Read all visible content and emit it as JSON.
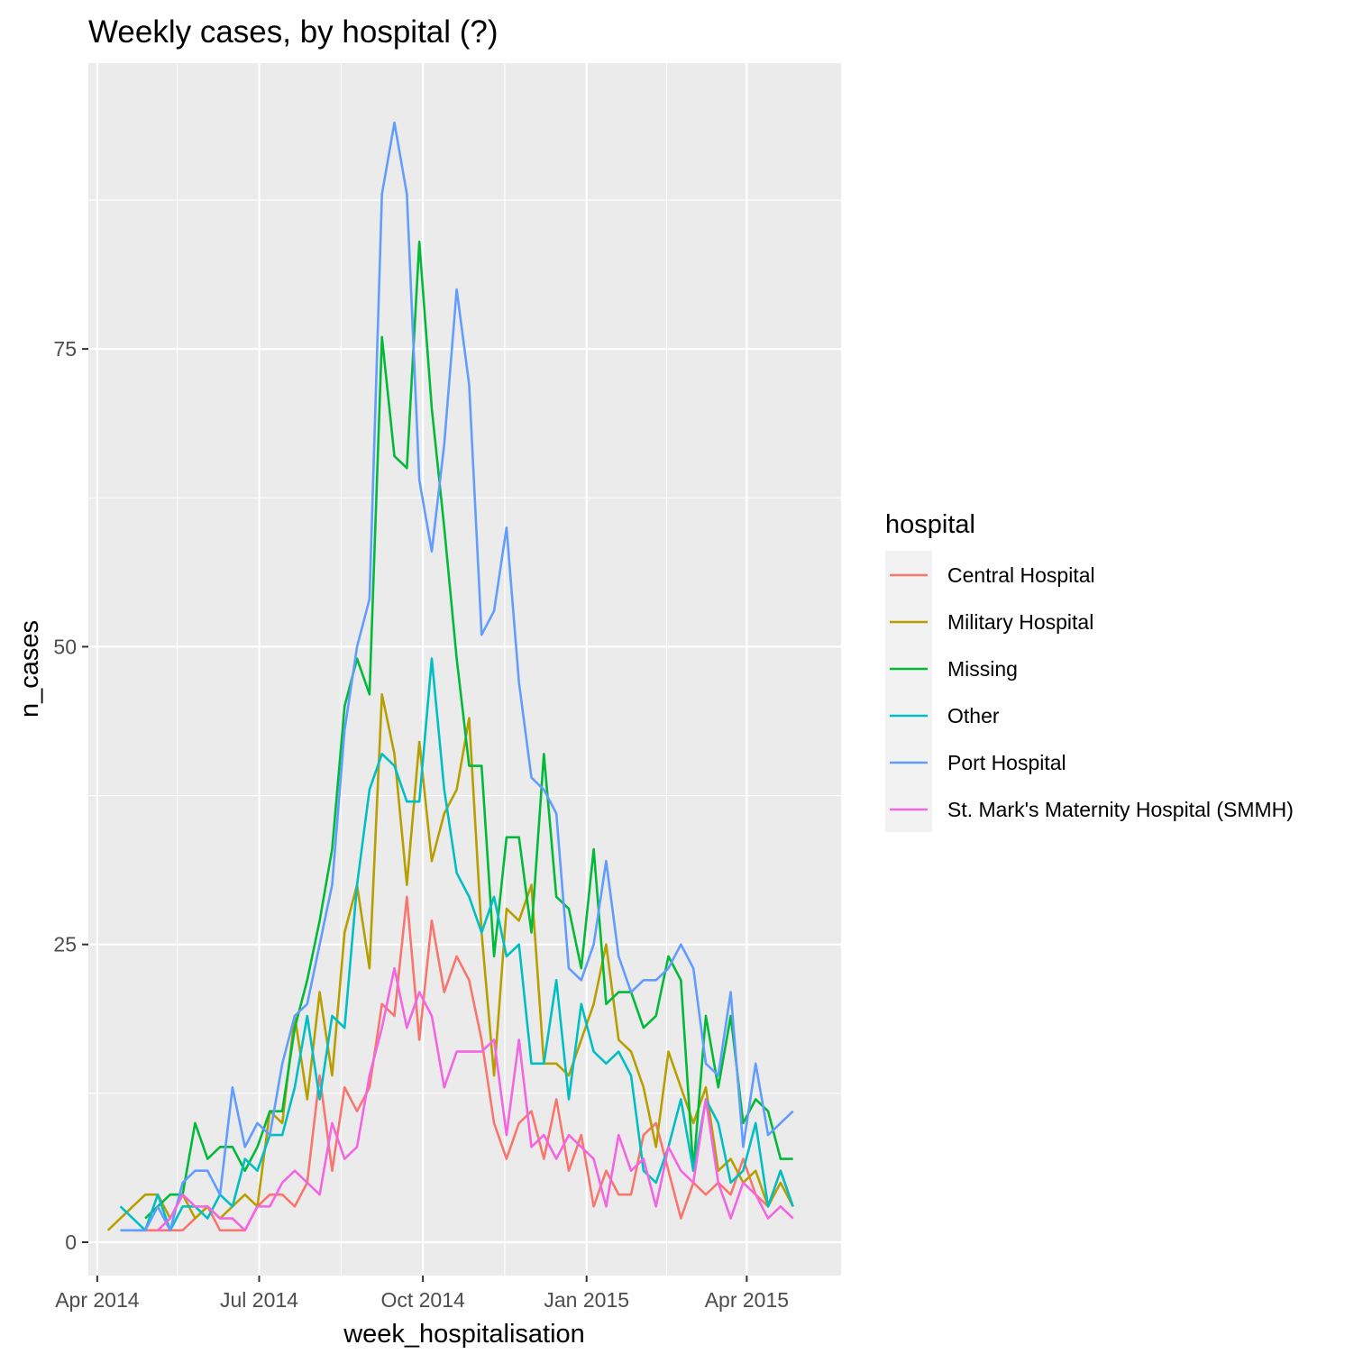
{
  "chart_data": {
    "type": "line",
    "title": "Weekly cases, by hospital (?)",
    "xlabel": "week_hospitalisation",
    "ylabel": "n_cases",
    "x_type": "date",
    "xlim": [
      "2014-03-27",
      "2015-05-24"
    ],
    "ylim": [
      -2.8,
      99
    ],
    "x_ticks": [
      {
        "date": "2014-04-01",
        "label": "Apr 2014"
      },
      {
        "date": "2014-07-01",
        "label": "Jul 2014"
      },
      {
        "date": "2014-10-01",
        "label": "Oct 2014"
      },
      {
        "date": "2015-01-01",
        "label": "Jan 2015"
      },
      {
        "date": "2015-04-01",
        "label": "Apr 2015"
      }
    ],
    "x_minor_ticks": [
      "2014-05-16",
      "2014-08-16",
      "2014-11-16",
      "2015-02-15"
    ],
    "y_ticks": [
      {
        "value": 0,
        "label": "0"
      },
      {
        "value": 25,
        "label": "25"
      },
      {
        "value": 50,
        "label": "50"
      },
      {
        "value": 75,
        "label": "75"
      }
    ],
    "y_minor_ticks": [
      12.5,
      37.5,
      62.5,
      87.5
    ],
    "grid": true,
    "panel_background": "#ebebeb",
    "legend": {
      "title": "hospital",
      "position": "right"
    },
    "series": [
      {
        "name": "Central Hospital",
        "color": "#F8766D",
        "x": [
          "2014-04-21",
          "2014-04-28",
          "2014-05-05",
          "2014-05-12",
          "2014-05-19",
          "2014-05-26",
          "2014-06-02",
          "2014-06-09",
          "2014-06-16",
          "2014-06-23",
          "2014-06-30",
          "2014-07-07",
          "2014-07-14",
          "2014-07-21",
          "2014-07-28",
          "2014-08-04",
          "2014-08-11",
          "2014-08-18",
          "2014-08-25",
          "2014-09-01",
          "2014-09-08",
          "2014-09-15",
          "2014-09-22",
          "2014-09-29",
          "2014-10-06",
          "2014-10-13",
          "2014-10-20",
          "2014-10-27",
          "2014-11-03",
          "2014-11-10",
          "2014-11-17",
          "2014-11-24",
          "2014-12-01",
          "2014-12-08",
          "2014-12-15",
          "2014-12-22",
          "2014-12-29",
          "2015-01-05",
          "2015-01-12",
          "2015-01-19",
          "2015-01-26",
          "2015-02-02",
          "2015-02-09",
          "2015-02-16",
          "2015-02-23",
          "2015-03-02",
          "2015-03-09",
          "2015-03-16",
          "2015-03-23",
          "2015-03-30",
          "2015-04-06",
          "2015-04-13",
          "2015-04-20",
          "2015-04-27"
        ],
        "y": [
          1,
          1,
          1,
          1,
          1,
          2,
          3,
          1,
          1,
          1,
          3,
          4,
          4,
          3,
          5,
          14,
          6,
          13,
          11,
          13,
          20,
          19,
          29,
          17,
          27,
          21,
          24,
          22,
          17,
          10,
          7,
          10,
          11,
          7,
          12,
          6,
          9,
          3,
          6,
          4,
          4,
          9,
          10,
          6,
          2,
          5,
          4,
          5,
          4,
          7,
          4,
          3,
          6,
          3
        ]
      },
      {
        "name": "Military Hospital",
        "color": "#B79F00",
        "x": [
          "2014-04-07",
          "2014-04-14",
          "2014-04-21",
          "2014-04-28",
          "2014-05-05",
          "2014-05-12",
          "2014-05-19",
          "2014-05-26",
          "2014-06-02",
          "2014-06-09",
          "2014-06-16",
          "2014-06-23",
          "2014-06-30",
          "2014-07-07",
          "2014-07-14",
          "2014-07-21",
          "2014-07-28",
          "2014-08-04",
          "2014-08-11",
          "2014-08-18",
          "2014-08-25",
          "2014-09-01",
          "2014-09-08",
          "2014-09-15",
          "2014-09-22",
          "2014-09-29",
          "2014-10-06",
          "2014-10-13",
          "2014-10-20",
          "2014-10-27",
          "2014-11-03",
          "2014-11-10",
          "2014-11-17",
          "2014-11-24",
          "2014-12-01",
          "2014-12-08",
          "2014-12-15",
          "2014-12-22",
          "2014-12-29",
          "2015-01-05",
          "2015-01-12",
          "2015-01-19",
          "2015-01-26",
          "2015-02-02",
          "2015-02-09",
          "2015-02-16",
          "2015-02-23",
          "2015-03-02",
          "2015-03-09",
          "2015-03-16",
          "2015-03-23",
          "2015-03-30",
          "2015-04-06",
          "2015-04-13",
          "2015-04-20",
          "2015-04-27"
        ],
        "y": [
          1,
          2,
          3,
          4,
          4,
          2,
          4,
          2,
          3,
          2,
          3,
          4,
          3,
          11,
          10,
          19,
          12,
          21,
          14,
          26,
          30,
          23,
          46,
          41,
          30,
          42,
          32,
          36,
          38,
          44,
          26,
          14,
          28,
          27,
          30,
          15,
          15,
          14,
          17,
          20,
          25,
          17,
          16,
          13,
          8,
          16,
          13,
          10,
          13,
          6,
          7,
          5,
          6,
          3,
          5,
          3
        ]
      },
      {
        "name": "Missing",
        "color": "#00BA38",
        "x": [
          "2014-04-28",
          "2014-05-05",
          "2014-05-12",
          "2014-05-19",
          "2014-05-26",
          "2014-06-02",
          "2014-06-09",
          "2014-06-16",
          "2014-06-23",
          "2014-06-30",
          "2014-07-07",
          "2014-07-14",
          "2014-07-21",
          "2014-07-28",
          "2014-08-04",
          "2014-08-11",
          "2014-08-18",
          "2014-08-25",
          "2014-09-01",
          "2014-09-08",
          "2014-09-15",
          "2014-09-22",
          "2014-09-29",
          "2014-10-06",
          "2014-10-13",
          "2014-10-20",
          "2014-10-27",
          "2014-11-03",
          "2014-11-10",
          "2014-11-17",
          "2014-11-24",
          "2014-12-01",
          "2014-12-08",
          "2014-12-15",
          "2014-12-22",
          "2014-12-29",
          "2015-01-05",
          "2015-01-12",
          "2015-01-19",
          "2015-01-26",
          "2015-02-02",
          "2015-02-09",
          "2015-02-16",
          "2015-02-23",
          "2015-03-02",
          "2015-03-09",
          "2015-03-16",
          "2015-03-23",
          "2015-03-30",
          "2015-04-06",
          "2015-04-13",
          "2015-04-20",
          "2015-04-27"
        ],
        "y": [
          2,
          3,
          4,
          4,
          10,
          7,
          8,
          8,
          6,
          8,
          11,
          11,
          18,
          22,
          27,
          33,
          45,
          49,
          46,
          76,
          66,
          65,
          84,
          70,
          60,
          49,
          40,
          40,
          24,
          34,
          34,
          26,
          41,
          29,
          28,
          23,
          33,
          20,
          21,
          21,
          18,
          19,
          24,
          22,
          6,
          19,
          13,
          19,
          10,
          12,
          11,
          7,
          7
        ]
      },
      {
        "name": "Other",
        "color": "#00BFC4",
        "x": [
          "2014-04-14",
          "2014-04-21",
          "2014-04-28",
          "2014-05-05",
          "2014-05-12",
          "2014-05-19",
          "2014-05-26",
          "2014-06-02",
          "2014-06-09",
          "2014-06-16",
          "2014-06-23",
          "2014-06-30",
          "2014-07-07",
          "2014-07-14",
          "2014-07-21",
          "2014-07-28",
          "2014-08-04",
          "2014-08-11",
          "2014-08-18",
          "2014-08-25",
          "2014-09-01",
          "2014-09-08",
          "2014-09-15",
          "2014-09-22",
          "2014-09-29",
          "2014-10-06",
          "2014-10-13",
          "2014-10-20",
          "2014-10-27",
          "2014-11-03",
          "2014-11-10",
          "2014-11-17",
          "2014-11-24",
          "2014-12-01",
          "2014-12-08",
          "2014-12-15",
          "2014-12-22",
          "2014-12-29",
          "2015-01-05",
          "2015-01-12",
          "2015-01-19",
          "2015-01-26",
          "2015-02-02",
          "2015-02-09",
          "2015-02-16",
          "2015-02-23",
          "2015-03-02",
          "2015-03-09",
          "2015-03-16",
          "2015-03-23",
          "2015-03-30",
          "2015-04-06",
          "2015-04-13",
          "2015-04-20",
          "2015-04-27"
        ],
        "y": [
          3,
          2,
          1,
          4,
          1,
          3,
          3,
          2,
          4,
          3,
          7,
          6,
          9,
          9,
          13,
          19,
          12,
          19,
          18,
          30,
          38,
          41,
          40,
          37,
          37,
          49,
          38,
          31,
          29,
          26,
          29,
          24,
          25,
          15,
          15,
          22,
          12,
          20,
          16,
          15,
          16,
          14,
          6,
          5,
          8,
          12,
          6,
          12,
          10,
          5,
          6,
          10,
          3,
          6,
          3
        ]
      },
      {
        "name": "Port Hospital",
        "color": "#619CFF",
        "x": [
          "2014-04-14",
          "2014-04-21",
          "2014-04-28",
          "2014-05-05",
          "2014-05-12",
          "2014-05-19",
          "2014-05-26",
          "2014-06-02",
          "2014-06-09",
          "2014-06-16",
          "2014-06-23",
          "2014-06-30",
          "2014-07-07",
          "2014-07-14",
          "2014-07-21",
          "2014-07-28",
          "2014-08-04",
          "2014-08-11",
          "2014-08-18",
          "2014-08-25",
          "2014-09-01",
          "2014-09-08",
          "2014-09-15",
          "2014-09-22",
          "2014-09-29",
          "2014-10-06",
          "2014-10-13",
          "2014-10-20",
          "2014-10-27",
          "2014-11-03",
          "2014-11-10",
          "2014-11-17",
          "2014-11-24",
          "2014-12-01",
          "2014-12-08",
          "2014-12-15",
          "2014-12-22",
          "2014-12-29",
          "2015-01-05",
          "2015-01-12",
          "2015-01-19",
          "2015-01-26",
          "2015-02-02",
          "2015-02-09",
          "2015-02-16",
          "2015-02-23",
          "2015-03-02",
          "2015-03-09",
          "2015-03-16",
          "2015-03-23",
          "2015-03-30",
          "2015-04-06",
          "2015-04-13",
          "2015-04-20",
          "2015-04-27"
        ],
        "y": [
          1,
          1,
          1,
          3,
          1,
          5,
          6,
          6,
          4,
          13,
          8,
          10,
          9,
          15,
          19,
          20,
          25,
          30,
          43,
          50,
          54,
          88,
          94,
          88,
          64,
          58,
          67,
          80,
          72,
          51,
          53,
          60,
          47,
          39,
          38,
          36,
          23,
          22,
          25,
          32,
          24,
          21,
          22,
          22,
          23,
          25,
          23,
          15,
          14,
          21,
          8,
          15,
          9,
          10,
          11
        ]
      },
      {
        "name": "St. Mark's Maternity Hospital (SMMH)",
        "color": "#F564E3",
        "x": [
          "2014-05-05",
          "2014-05-12",
          "2014-05-19",
          "2014-05-26",
          "2014-06-02",
          "2014-06-09",
          "2014-06-16",
          "2014-06-23",
          "2014-06-30",
          "2014-07-07",
          "2014-07-14",
          "2014-07-21",
          "2014-07-28",
          "2014-08-04",
          "2014-08-11",
          "2014-08-18",
          "2014-08-25",
          "2014-09-01",
          "2014-09-08",
          "2014-09-15",
          "2014-09-22",
          "2014-09-29",
          "2014-10-06",
          "2014-10-13",
          "2014-10-20",
          "2014-10-27",
          "2014-11-03",
          "2014-11-10",
          "2014-11-17",
          "2014-11-24",
          "2014-12-01",
          "2014-12-08",
          "2014-12-15",
          "2014-12-22",
          "2014-12-29",
          "2015-01-05",
          "2015-01-12",
          "2015-01-19",
          "2015-01-26",
          "2015-02-02",
          "2015-02-09",
          "2015-02-16",
          "2015-02-23",
          "2015-03-02",
          "2015-03-09",
          "2015-03-16",
          "2015-03-23",
          "2015-03-30",
          "2015-04-06",
          "2015-04-13",
          "2015-04-20",
          "2015-04-27"
        ],
        "y": [
          1,
          2,
          4,
          3,
          3,
          2,
          2,
          1,
          3,
          3,
          5,
          6,
          5,
          4,
          10,
          7,
          8,
          14,
          18,
          23,
          18,
          21,
          19,
          13,
          16,
          16,
          16,
          17,
          9,
          17,
          8,
          9,
          7,
          9,
          8,
          7,
          3,
          9,
          6,
          7,
          3,
          8,
          6,
          5,
          12,
          5,
          2,
          5,
          4,
          2,
          3,
          2
        ]
      }
    ]
  }
}
